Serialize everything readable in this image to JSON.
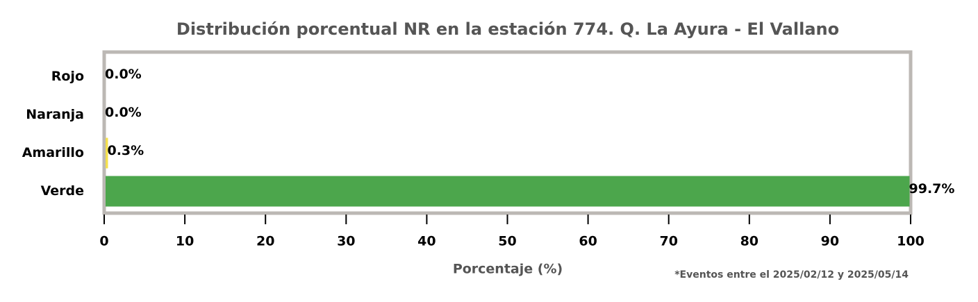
{
  "chart_data": {
    "type": "barh",
    "title": "Distribución porcentual NR en la estación 774. Q. La Ayura - El Vallano",
    "xlabel": "Porcentaje (%)",
    "annotation": "*Eventos entre el 2025/02/12 y 2025/05/14",
    "categories": [
      "Rojo",
      "Naranja",
      "Amarillo",
      "Verde"
    ],
    "values": [
      0.0,
      0.0,
      0.3,
      99.7
    ],
    "value_labels": [
      "0.0%",
      "0.0%",
      "0.3%",
      "99.7%"
    ],
    "colors": [
      "#e53935",
      "#fb8c00",
      "#f4e04d",
      "#4ca64c"
    ],
    "xlim": [
      0,
      100
    ],
    "xticks": [
      0,
      10,
      20,
      30,
      40,
      50,
      60,
      70,
      80,
      90,
      100
    ],
    "grid": false
  }
}
